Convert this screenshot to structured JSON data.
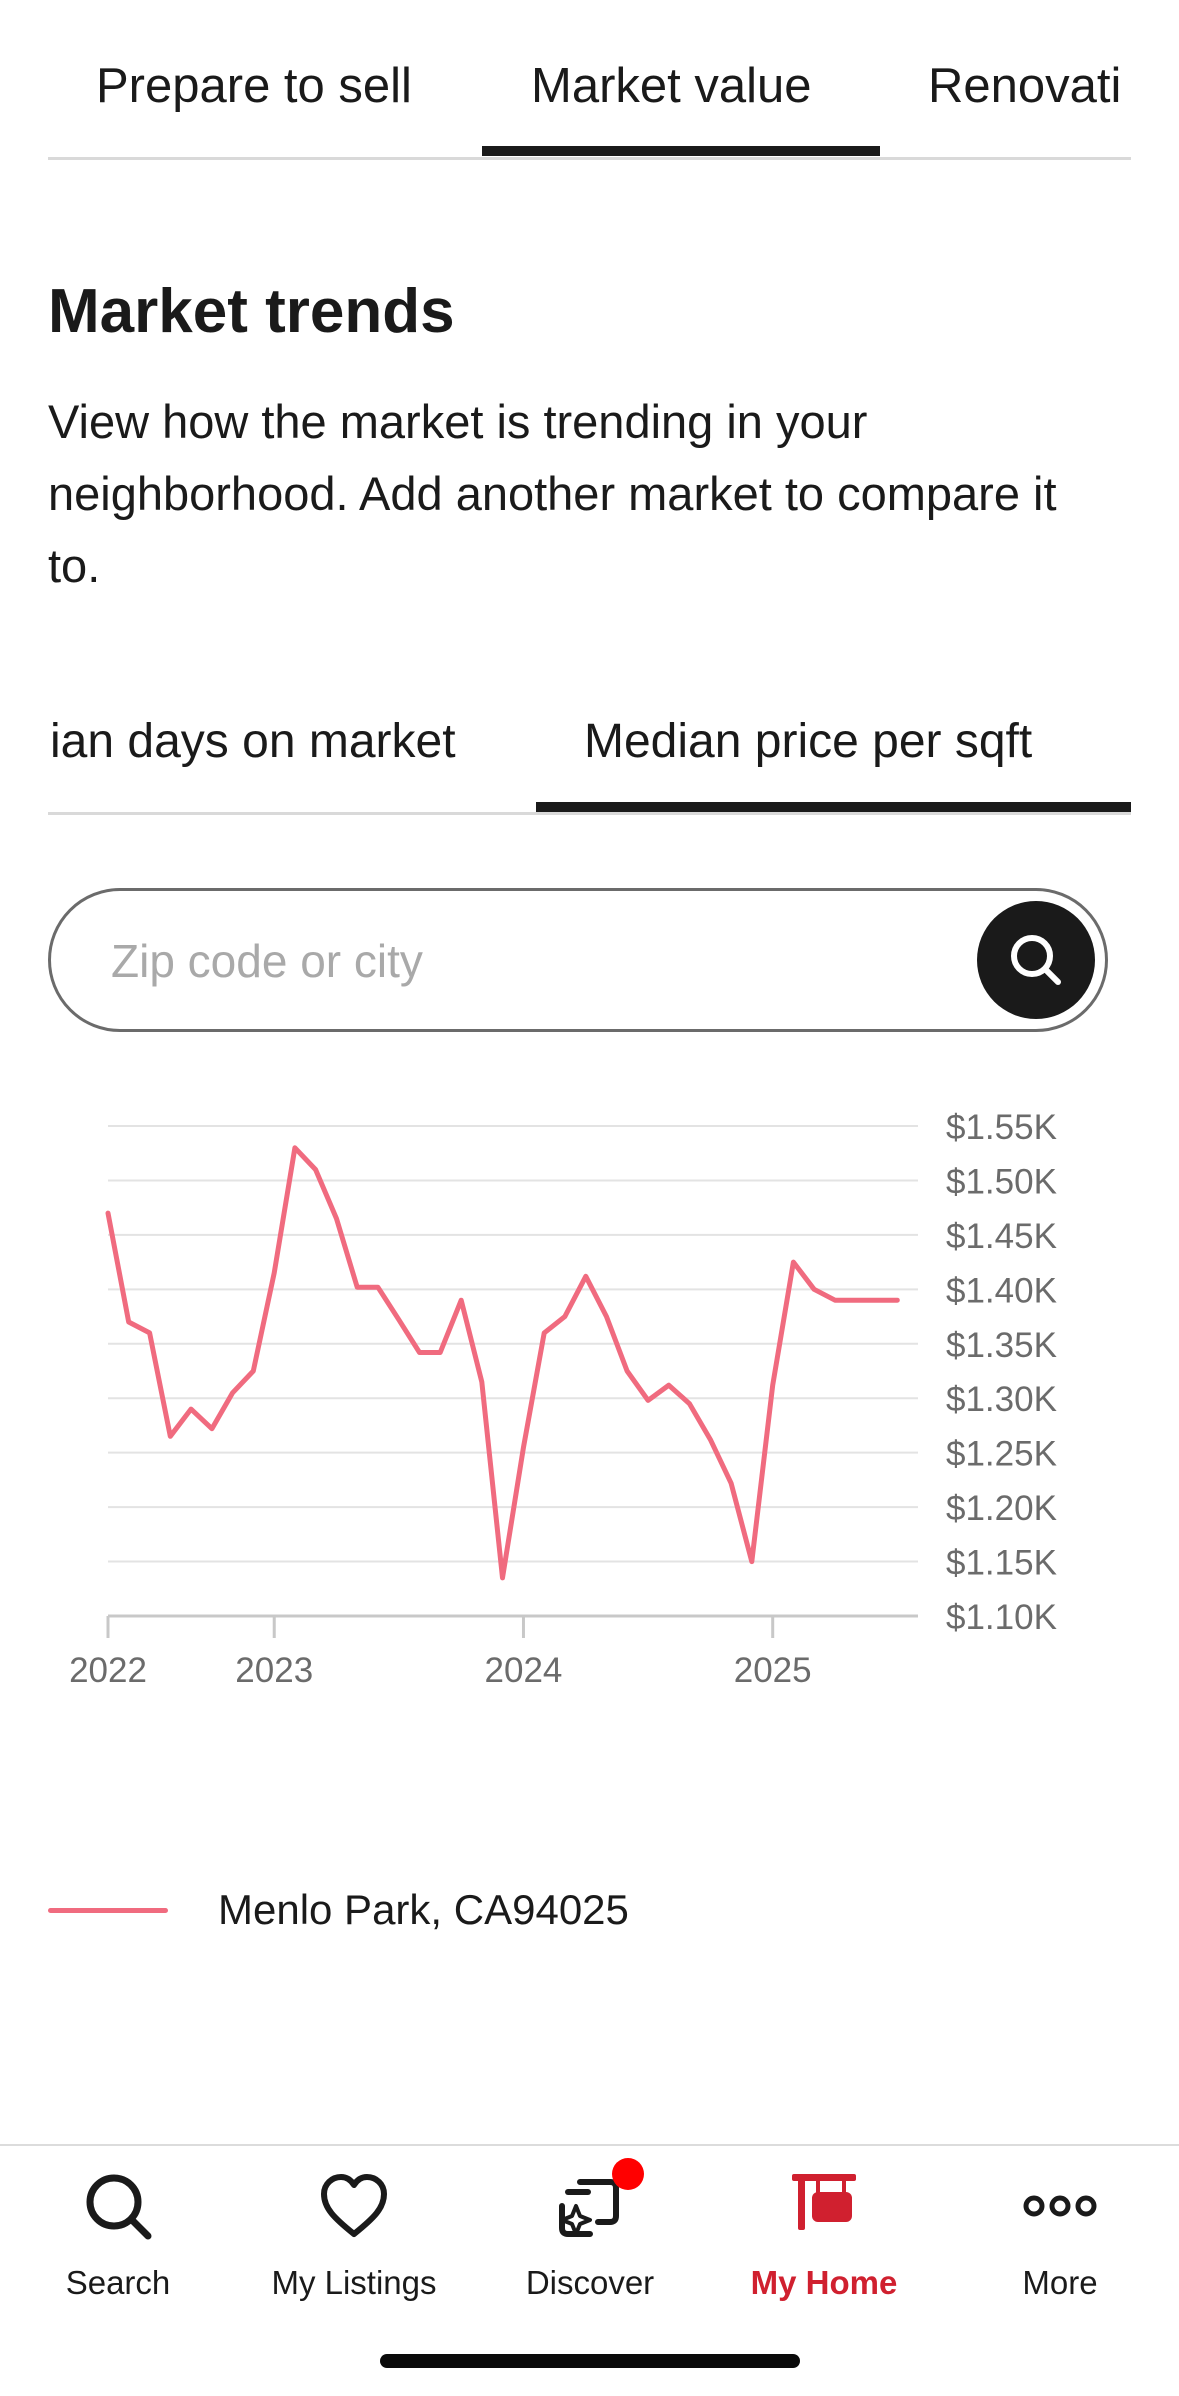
{
  "top_tabs": {
    "items": [
      {
        "label": "Prepare to sell"
      },
      {
        "label": "Market value"
      },
      {
        "label": "Renovati"
      }
    ],
    "active": "Market value"
  },
  "section": {
    "title": "Market trends",
    "description": "View how the market is trending in your neighborhood. Add another market to compare it to."
  },
  "metric_tabs": {
    "items": [
      {
        "label": "ian days on market"
      },
      {
        "label": "Median price per sqft"
      }
    ],
    "active": "Median price per sqft"
  },
  "search": {
    "placeholder": "Zip code or city",
    "value": ""
  },
  "chart_data": {
    "type": "line",
    "x_ticks": [
      "2022",
      "2023",
      "2024",
      "2025"
    ],
    "x_tick_values": [
      2022.0,
      2022.667,
      2023.667,
      2024.667
    ],
    "y_ticks": [
      "$1.55K",
      "$1.50K",
      "$1.45K",
      "$1.40K",
      "$1.35K",
      "$1.30K",
      "$1.25K",
      "$1.20K",
      "$1.15K",
      "$1.10K"
    ],
    "ylim": [
      1100,
      1550
    ],
    "xlim": [
      2022.0,
      2025.25
    ],
    "grid": true,
    "color": "#f06b7f",
    "series": [
      {
        "name": "Menlo Park, CA94025",
        "x": [
          2022.0,
          2022.083,
          2022.167,
          2022.25,
          2022.333,
          2022.417,
          2022.5,
          2022.583,
          2022.667,
          2022.75,
          2022.833,
          2022.917,
          2023.0,
          2023.083,
          2023.167,
          2023.25,
          2023.333,
          2023.417,
          2023.5,
          2023.583,
          2023.667,
          2023.75,
          2023.833,
          2023.917,
          2024.0,
          2024.083,
          2024.167,
          2024.25,
          2024.333,
          2024.417,
          2024.5,
          2024.583,
          2024.667,
          2024.75,
          2024.833,
          2024.917,
          2025.0,
          2025.083,
          2025.167
        ],
        "y": [
          1470,
          1370,
          1360,
          1265,
          1290,
          1272,
          1305,
          1325,
          1415,
          1530,
          1510,
          1465,
          1402,
          1402,
          1372,
          1342,
          1342,
          1390,
          1315,
          1135,
          1255,
          1360,
          1375,
          1412,
          1375,
          1325,
          1298,
          1312,
          1295,
          1262,
          1222,
          1150,
          1312,
          1425,
          1400,
          1390,
          1390,
          1390,
          1390
        ]
      }
    ]
  },
  "legend": {
    "label": "Menlo Park, CA94025"
  },
  "bottom_nav": {
    "items": [
      {
        "label": "Search",
        "icon": "search-icon"
      },
      {
        "label": "My Listings",
        "icon": "heart-icon"
      },
      {
        "label": "Discover",
        "icon": "discover-icon"
      },
      {
        "label": "My Home",
        "icon": "home-sign-icon"
      },
      {
        "label": "More",
        "icon": "more-dots-icon"
      }
    ],
    "active": "My Home",
    "accent_color": "#d0202f",
    "badge_color": "#ff0000"
  }
}
